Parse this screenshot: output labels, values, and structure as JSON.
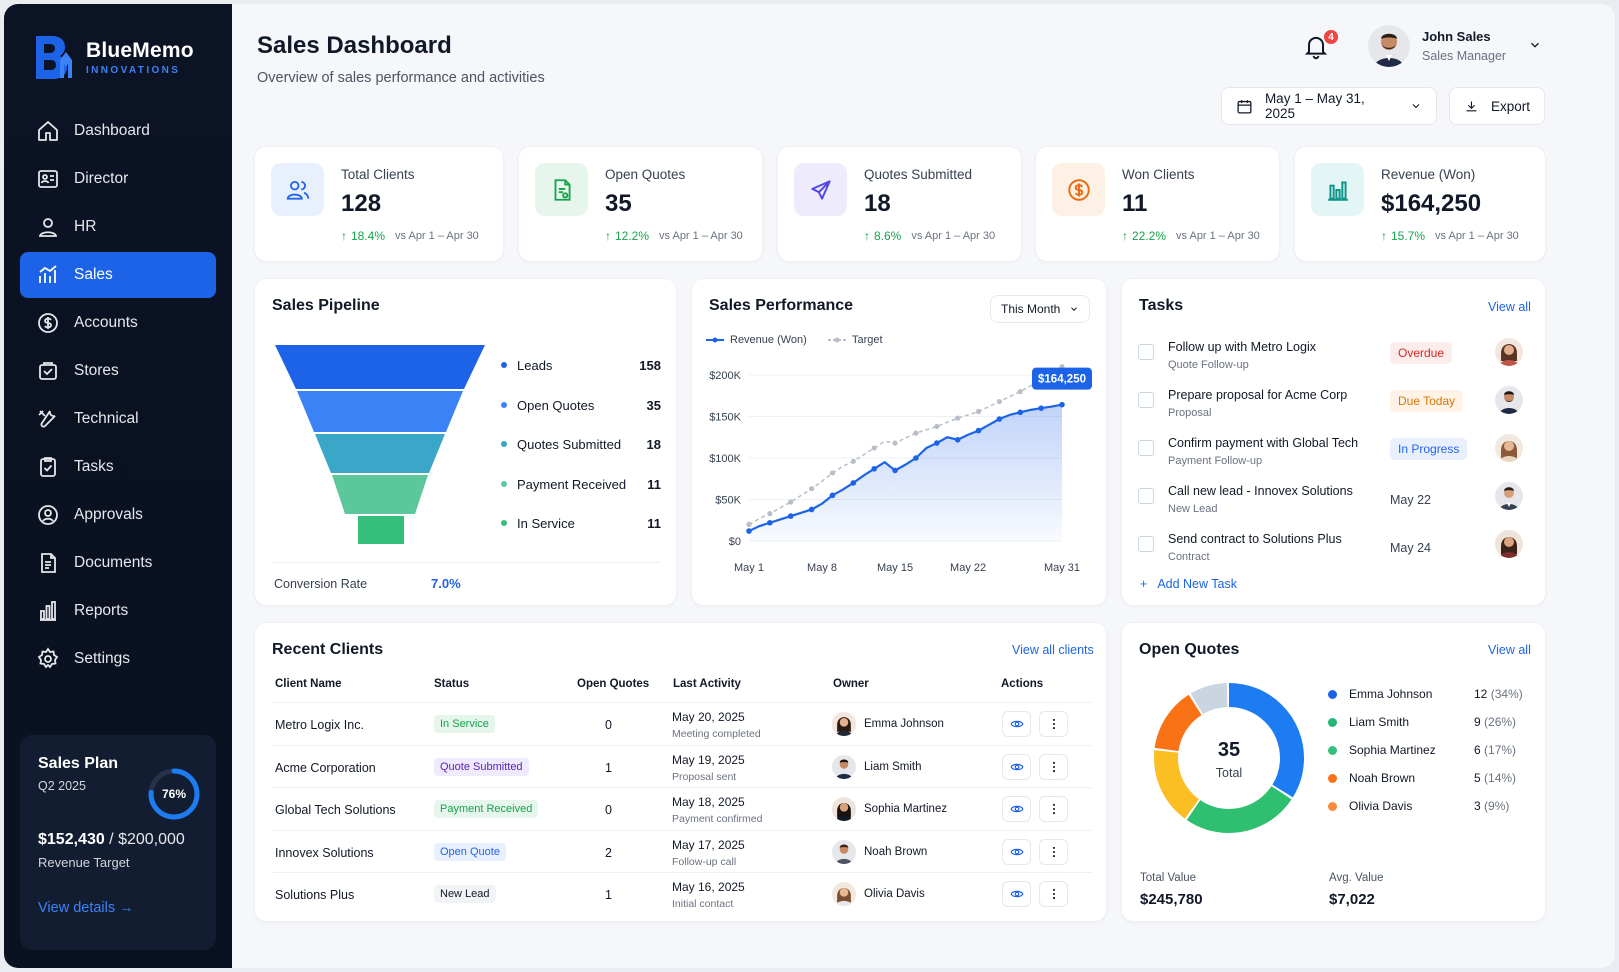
{
  "brand": {
    "name": "BlueMemo",
    "sub": "INNOVATIONS"
  },
  "nav": [
    {
      "label": "Dashboard",
      "icon": "home-icon"
    },
    {
      "label": "Director",
      "icon": "id-card-icon"
    },
    {
      "label": "HR",
      "icon": "user-icon"
    },
    {
      "label": "Sales",
      "icon": "chart-icon",
      "active": true
    },
    {
      "label": "Accounts",
      "icon": "dollar-icon"
    },
    {
      "label": "Stores",
      "icon": "store-icon"
    },
    {
      "label": "Technical",
      "icon": "tools-icon"
    },
    {
      "label": "Tasks",
      "icon": "clipboard-icon"
    },
    {
      "label": "Approvals",
      "icon": "approval-icon"
    },
    {
      "label": "Documents",
      "icon": "document-icon"
    },
    {
      "label": "Reports",
      "icon": "bar-chart-icon"
    },
    {
      "label": "Settings",
      "icon": "gear-icon"
    }
  ],
  "sales_plan": {
    "title": "Sales Plan",
    "quarter": "Q2 2025",
    "percent": "76%",
    "progress": 0.76,
    "amount": "$152,430",
    "target": "$200,000",
    "target_label": "Revenue Target",
    "link": "View details"
  },
  "header": {
    "title": "Sales Dashboard",
    "subtitle": "Overview of sales performance and activities",
    "notifications": "4",
    "user_name": "John Sales",
    "user_role": "Sales Manager",
    "date_range": "May 1 – May 31, 2025",
    "export": "Export"
  },
  "stats": [
    {
      "label": "Total Clients",
      "value": "128",
      "change": "18.4%",
      "vs": "vs Apr 1 – Apr 30",
      "icon": "users-icon",
      "bg": "#e8f0fe",
      "fg": "#2563eb"
    },
    {
      "label": "Open Quotes",
      "value": "35",
      "change": "12.2%",
      "vs": "vs Apr 1 – Apr 30",
      "icon": "document-icon",
      "bg": "#e6f6ec",
      "fg": "#16a34a"
    },
    {
      "label": "Quotes Submitted",
      "value": "18",
      "change": "8.6%",
      "vs": "vs Apr 1 – Apr 30",
      "icon": "send-icon",
      "bg": "#eeebfd",
      "fg": "#4f46e5"
    },
    {
      "label": "Won Clients",
      "value": "11",
      "change": "22.2%",
      "vs": "vs Apr 1 – Apr 30",
      "icon": "coin-icon",
      "bg": "#fdf0e4",
      "fg": "#ea6c10"
    },
    {
      "label": "Revenue (Won)",
      "value": "$164,250",
      "change": "15.7%",
      "vs": "vs Apr 1 – Apr 30",
      "icon": "bar-chart-icon",
      "bg": "#e3f5f4",
      "fg": "#0d9488"
    }
  ],
  "pipeline": {
    "title": "Sales Pipeline",
    "stages": [
      {
        "label": "Leads",
        "value": "158",
        "color": "#1d63e8"
      },
      {
        "label": "Open Quotes",
        "value": "35",
        "color": "#3b82f6"
      },
      {
        "label": "Quotes Submitted",
        "value": "18",
        "color": "#3aa6c8"
      },
      {
        "label": "Payment Received",
        "value": "11",
        "color": "#5bc79a"
      },
      {
        "label": "In Service",
        "value": "11",
        "color": "#34c07a"
      }
    ],
    "conversion_label": "Conversion Rate",
    "conversion_value": "7.0%"
  },
  "performance": {
    "title": "Sales Performance",
    "period": "This Month",
    "legend_revenue": "Revenue (Won)",
    "legend_target": "Target",
    "callout": "$164,250"
  },
  "chart_data": {
    "type": "line",
    "title": "Sales Performance",
    "x_ticks": [
      "May 1",
      "May 8",
      "May 15",
      "May 22",
      "May 31"
    ],
    "y_ticks": [
      "$200K",
      "$150K",
      "$100K",
      "$50K",
      "$0"
    ],
    "ylim": [
      0,
      200000
    ],
    "x": [
      1,
      2,
      3,
      4,
      5,
      6,
      7,
      8,
      9,
      10,
      11,
      12,
      13,
      14,
      15,
      16,
      17,
      18,
      19,
      20,
      21,
      22,
      23,
      24,
      25,
      26,
      27,
      28,
      29,
      30,
      31
    ],
    "series": [
      {
        "name": "Revenue (Won)",
        "color": "#1d63e8",
        "values": [
          12000,
          18000,
          22000,
          26000,
          30000,
          34000,
          38000,
          45000,
          55000,
          62000,
          70000,
          79000,
          87000,
          95000,
          85000,
          92000,
          100000,
          112000,
          118000,
          125000,
          122000,
          128000,
          133000,
          140000,
          147000,
          152000,
          155000,
          158000,
          160000,
          162000,
          164250
        ]
      },
      {
        "name": "Target",
        "color": "#b8bec9",
        "values": [
          20000,
          27000,
          33000,
          40000,
          47000,
          55000,
          63000,
          72000,
          82000,
          90000,
          96000,
          104000,
          112000,
          120000,
          118000,
          124000,
          130000,
          134000,
          138000,
          143000,
          148000,
          152000,
          156000,
          162000,
          168000,
          174000,
          180000,
          187000,
          195000,
          202000,
          210000
        ]
      }
    ],
    "grid": true,
    "legend": "top-left"
  },
  "tasks": {
    "title": "Tasks",
    "view_all": "View all",
    "add": "Add New Task",
    "items": [
      {
        "title": "Follow up with Metro Logix",
        "sub": "Quote Follow-up",
        "status": "Overdue",
        "bg": "#fdecec",
        "fg": "#dc2626",
        "avatar": "f"
      },
      {
        "title": "Prepare proposal for Acme Corp",
        "sub": "Proposal",
        "status": "Due Today",
        "bg": "#fef3e6",
        "fg": "#d97706",
        "avatar": "m"
      },
      {
        "title": "Confirm payment with Global Tech",
        "sub": "Payment Follow-up",
        "status": "In Progress",
        "bg": "#e8f0fe",
        "fg": "#2563eb",
        "avatar": "f2"
      },
      {
        "title": "Call new lead - Innovex Solutions",
        "sub": "New Lead",
        "due": "May 22",
        "avatar": "m2"
      },
      {
        "title": "Send contract to Solutions Plus",
        "sub": "Contract",
        "due": "May 24",
        "avatar": "f3"
      }
    ]
  },
  "recent_clients": {
    "title": "Recent Clients",
    "view_all": "View all clients",
    "columns": [
      "Client Name",
      "Status",
      "Open Quotes",
      "Last Activity",
      "Owner",
      "Actions"
    ],
    "rows": [
      {
        "name": "Metro Logix Inc.",
        "status": "In Service",
        "s_bg": "#e6f6ec",
        "s_fg": "#16a34a",
        "quotes": "0",
        "date": "May 20, 2025",
        "note": "Meeting completed",
        "owner": "Emma Johnson",
        "av": "f"
      },
      {
        "name": "Acme Corporation",
        "status": "Quote Submitted",
        "s_bg": "#efeafd",
        "s_fg": "#5b21b6",
        "quotes": "1",
        "date": "May 19, 2025",
        "note": "Proposal sent",
        "owner": "Liam Smith",
        "av": "m"
      },
      {
        "name": "Global Tech Solutions",
        "status": "Payment Received",
        "s_bg": "#e6f6ec",
        "s_fg": "#16a34a",
        "quotes": "0",
        "date": "May 18, 2025",
        "note": "Payment confirmed",
        "owner": "Sophia Martinez",
        "av": "f3"
      },
      {
        "name": "Innovex Solutions",
        "status": "Open Quote",
        "s_bg": "#e8f0fe",
        "s_fg": "#2563eb",
        "quotes": "2",
        "date": "May 17, 2025",
        "note": "Follow-up call",
        "owner": "Noah Brown",
        "av": "m2"
      },
      {
        "name": "Solutions Plus",
        "status": "New Lead",
        "s_bg": "#f1f3f6",
        "s_fg": "#111827",
        "quotes": "1",
        "date": "May 16, 2025",
        "note": "Initial contact",
        "owner": "Olivia Davis",
        "av": "f2"
      }
    ]
  },
  "open_quotes": {
    "title": "Open Quotes",
    "view_all": "View all",
    "center_value": "35",
    "center_label": "Total",
    "legend": [
      {
        "name": "Emma Johnson",
        "count": "12",
        "pct": "(34%)",
        "color": "#1d63e8"
      },
      {
        "name": "Liam Smith",
        "count": "9",
        "pct": "(26%)",
        "color": "#22b573"
      },
      {
        "name": "Sophia Martinez",
        "count": "6",
        "pct": "(17%)",
        "color": "#35c07d"
      },
      {
        "name": "Noah Brown",
        "count": "5",
        "pct": "(14%)",
        "color": "#f97316"
      },
      {
        "name": "Olivia Davis",
        "count": "3",
        "pct": "(9%)",
        "color": "#fb8a3c"
      }
    ],
    "donut_segments": [
      {
        "value": 12,
        "color": "#1d7cf2"
      },
      {
        "value": 9,
        "color": "#2fbf71"
      },
      {
        "value": 6,
        "color": "#fbbf24"
      },
      {
        "value": 5,
        "color": "#f97316"
      },
      {
        "value": 3,
        "color": "#cbd5e1"
      }
    ],
    "total_value_label": "Total Value",
    "total_value": "$245,780",
    "avg_value_label": "Avg. Value",
    "avg_value": "$7,022"
  }
}
